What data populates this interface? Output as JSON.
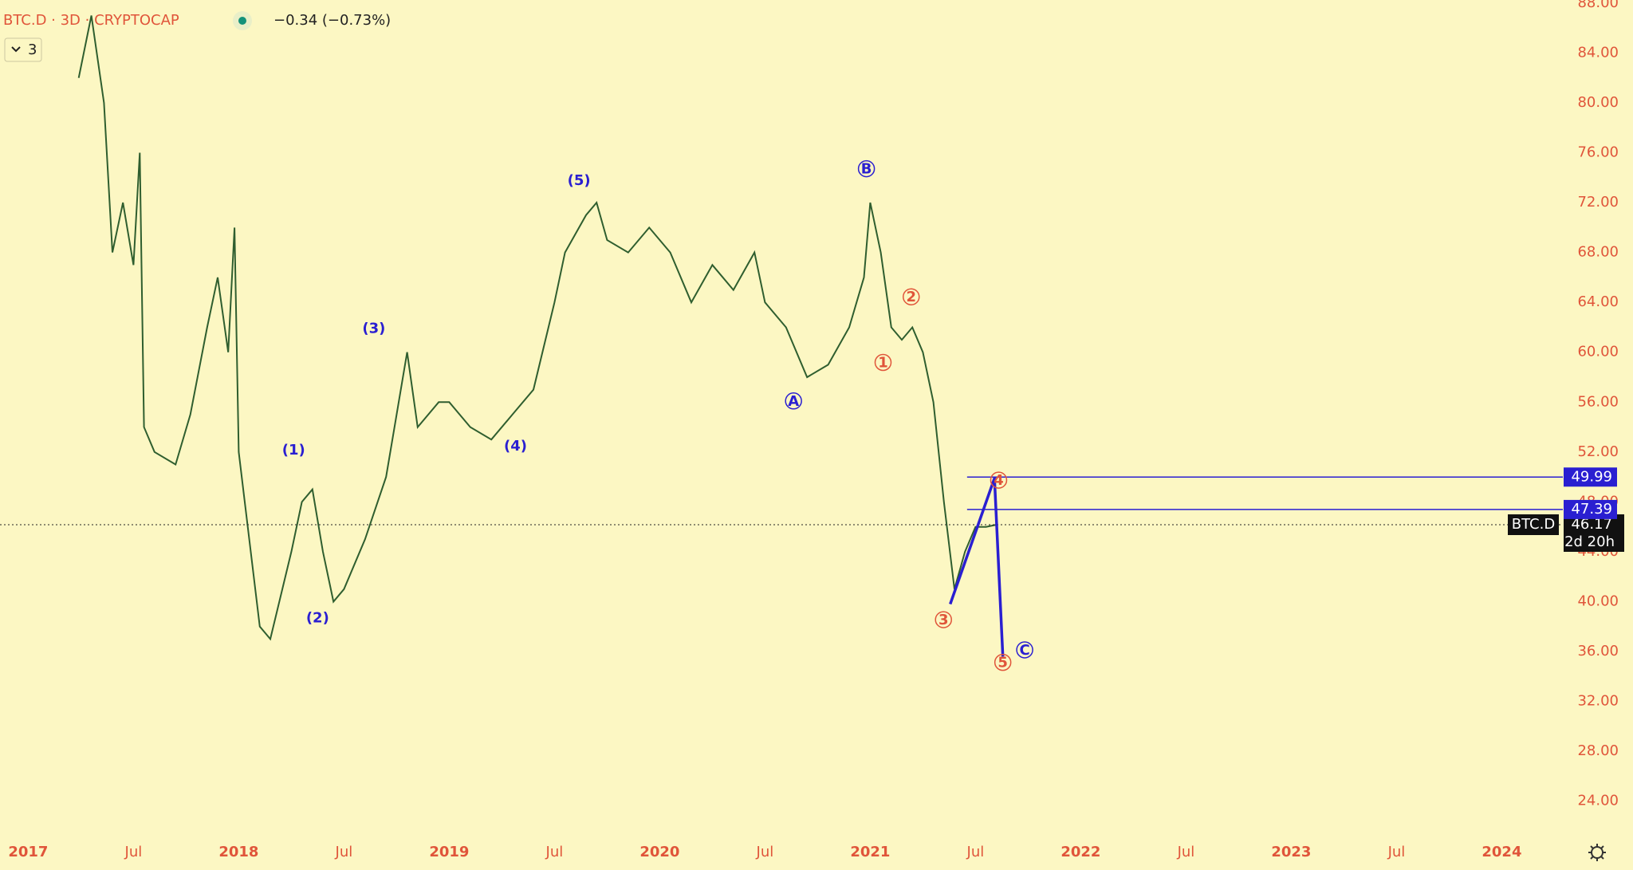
{
  "header": {
    "symbol": "BTC.D · 3D · CRYPTOCAP",
    "change": "−0.34 (−0.73%)",
    "layout_count": "3"
  },
  "chart_data": {
    "type": "line",
    "color": "#2f5e2f",
    "x": [
      2017.24,
      2017.3,
      2017.36,
      2017.4,
      2017.45,
      2017.5,
      2017.53,
      2017.55,
      2017.6,
      2017.7,
      2017.77,
      2017.85,
      2017.9,
      2017.95,
      2017.98,
      2018.0,
      2018.05,
      2018.1,
      2018.15,
      2018.25,
      2018.3,
      2018.35,
      2018.4,
      2018.45,
      2018.5,
      2018.6,
      2018.7,
      2018.75,
      2018.8,
      2018.85,
      2018.95,
      2019.0,
      2019.1,
      2019.2,
      2019.3,
      2019.4,
      2019.5,
      2019.55,
      2019.65,
      2019.7,
      2019.75,
      2019.85,
      2019.95,
      2020.05,
      2020.15,
      2020.25,
      2020.35,
      2020.45,
      2020.5,
      2020.6,
      2020.7,
      2020.8,
      2020.9,
      2020.97,
      2021.0,
      2021.05,
      2021.1,
      2021.15,
      2021.2,
      2021.25,
      2021.3,
      2021.35,
      2021.4,
      2021.45,
      2021.5,
      2021.55,
      2021.6
    ],
    "values": [
      82,
      87,
      80,
      68,
      72,
      67,
      76,
      54,
      52,
      51,
      55,
      62,
      66,
      60,
      70,
      52,
      45,
      38,
      37,
      44,
      48,
      49,
      44,
      40,
      41,
      45,
      50,
      55,
      60,
      54,
      56,
      56,
      54,
      53,
      55,
      57,
      64,
      68,
      71,
      72,
      69,
      68,
      70,
      68,
      64,
      67,
      65,
      68,
      64,
      62,
      58,
      59,
      62,
      66,
      72,
      68,
      62,
      61,
      62,
      60,
      56,
      48,
      41,
      44,
      46,
      46,
      46.17
    ],
    "xlim": [
      2016.866,
      2024.29
    ],
    "ylim": [
      21.42,
      88.25
    ],
    "xticks": [
      2017,
      {
        "value": 2017.5,
        "label": "Jul"
      },
      2018,
      {
        "value": 2018.5,
        "label": "Jul"
      },
      2019,
      {
        "value": 2019.5,
        "label": "Jul"
      },
      2020,
      {
        "value": 2020.5,
        "label": "Jul"
      },
      2021,
      {
        "value": 2021.5,
        "label": "Jul"
      },
      2022,
      {
        "value": 2022.5,
        "label": "Jul"
      },
      2023,
      {
        "value": 2023.5,
        "label": "Jul"
      },
      2024
    ],
    "yticks": [
      {
        "value": 24,
        "label": "24.00"
      },
      {
        "value": 28,
        "label": "28.00"
      },
      {
        "value": 32,
        "label": "32.00"
      },
      {
        "value": 36,
        "label": "36.00"
      },
      {
        "value": 40,
        "label": "40.00"
      },
      {
        "value": 44,
        "label": "44.00"
      },
      {
        "value": 48,
        "label": "48.00"
      },
      {
        "value": 52,
        "label": "52.00"
      },
      {
        "value": 56,
        "label": "56.00"
      },
      {
        "value": 60,
        "label": "60.00"
      },
      {
        "value": 64,
        "label": "64.00"
      },
      {
        "value": 68,
        "label": "68.00"
      },
      {
        "value": 72,
        "label": "72.00"
      },
      {
        "value": 76,
        "label": "76.00"
      },
      {
        "value": 80,
        "label": "80.00"
      },
      {
        "value": 84,
        "label": "84.00"
      },
      {
        "value": 88,
        "label": "88.00"
      }
    ],
    "last_price": 46.17,
    "last_name": "BTC.D",
    "countdown": "2d 20h",
    "levels": [
      {
        "start": 2021.46,
        "value": 49.99
      },
      {
        "start": 2021.46,
        "value": 47.39
      }
    ],
    "drawing": {
      "x": [
        2021.38,
        2021.59,
        2021.63
      ],
      "y": [
        39.8,
        49.9,
        35.6
      ]
    },
    "wave_labels": [
      {
        "text": "(1)",
        "color": "#2a1fd1",
        "circled": false
      },
      {
        "text": "(2)",
        "color": "#2a1fd1",
        "circled": false
      },
      {
        "text": "(3)",
        "color": "#2a1fd1",
        "circled": false
      },
      {
        "text": "(4)",
        "color": "#2a1fd1",
        "circled": false
      },
      {
        "text": "(5)",
        "color": "#2a1fd1",
        "circled": false
      },
      {
        "text": "A",
        "color": "#2a1fd1",
        "circled": true
      },
      {
        "text": "B",
        "color": "#2a1fd1",
        "circled": true
      },
      {
        "text": "C",
        "color": "#2a1fd1",
        "circled": true
      },
      {
        "text": "1",
        "color": "#e0553a",
        "circled": true
      },
      {
        "text": "2",
        "color": "#e0553a",
        "circled": true
      },
      {
        "text": "3",
        "color": "#e0553a",
        "circled": true
      },
      {
        "text": "4",
        "color": "#e0553a",
        "circled": true
      },
      {
        "text": "5",
        "color": "#e0553a",
        "circled": true
      }
    ]
  }
}
